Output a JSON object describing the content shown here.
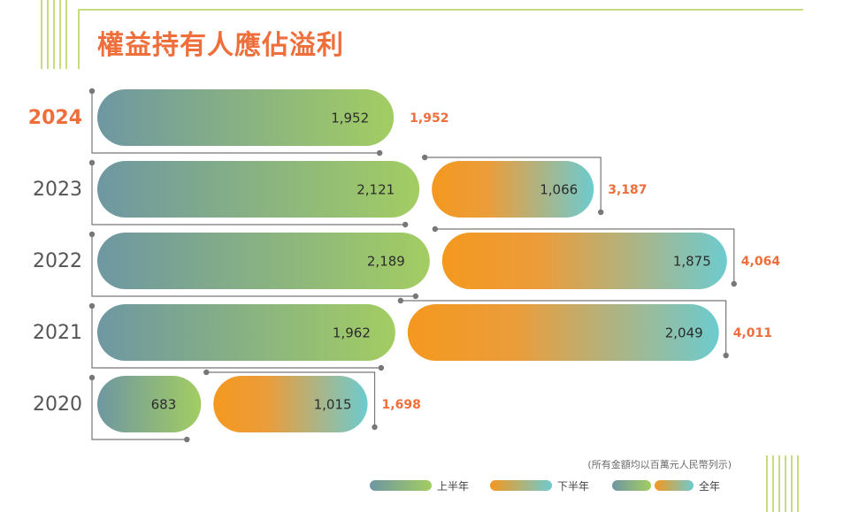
{
  "title": "權益持有人應佔溢利",
  "note": "(所有金額均以百萬元人民幣列示)",
  "legend": {
    "h1": "上半年",
    "h2": "下半年",
    "full": "全年"
  },
  "colors": {
    "accent": "#ef6f3c",
    "h1_start": "#6e97a2",
    "h1_end": "#a3cd62",
    "h2_start": "#f4981f",
    "h2_end": "#6dcbcf",
    "deco_line": "#c7dc7e",
    "bracket": "#777777",
    "axis_text": "#555555"
  },
  "chart_data": {
    "type": "bar",
    "orientation": "horizontal",
    "stacked": true,
    "categories": [
      "2024",
      "2023",
      "2022",
      "2021",
      "2020"
    ],
    "highlight_category": "2024",
    "series": [
      {
        "name": "上半年",
        "values": [
          1952,
          2121,
          2189,
          1962,
          683
        ]
      },
      {
        "name": "下半年",
        "values": [
          null,
          1066,
          1875,
          2049,
          1015
        ]
      }
    ],
    "totals": [
      1952,
      3187,
      4064,
      4011,
      1698
    ],
    "value_labels": {
      "h1": [
        "1,952",
        "2,121",
        "2,189",
        "1,962",
        "683"
      ],
      "h2": [
        "",
        "1,066",
        "1,875",
        "2,049",
        "1,015"
      ],
      "total": [
        "1,952",
        "3,187",
        "4,064",
        "4,011",
        "1,698"
      ]
    },
    "xlim": [
      0,
      4200
    ],
    "grid": false,
    "legend_position": "bottom-right"
  }
}
